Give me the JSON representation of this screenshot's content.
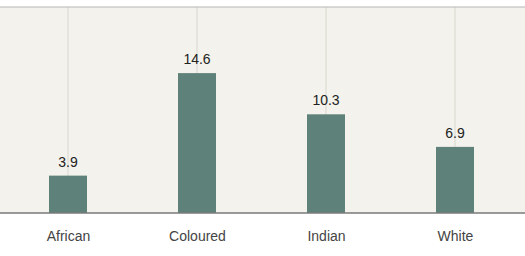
{
  "chart_data": {
    "type": "bar",
    "categories": [
      "African",
      "Coloured",
      "Indian",
      "White"
    ],
    "values": [
      3.9,
      14.6,
      10.3,
      6.9
    ],
    "color": "#5e8279",
    "ylim": [
      0,
      21.5
    ],
    "grid": true,
    "data_labels": true,
    "tick_labels": "x"
  }
}
